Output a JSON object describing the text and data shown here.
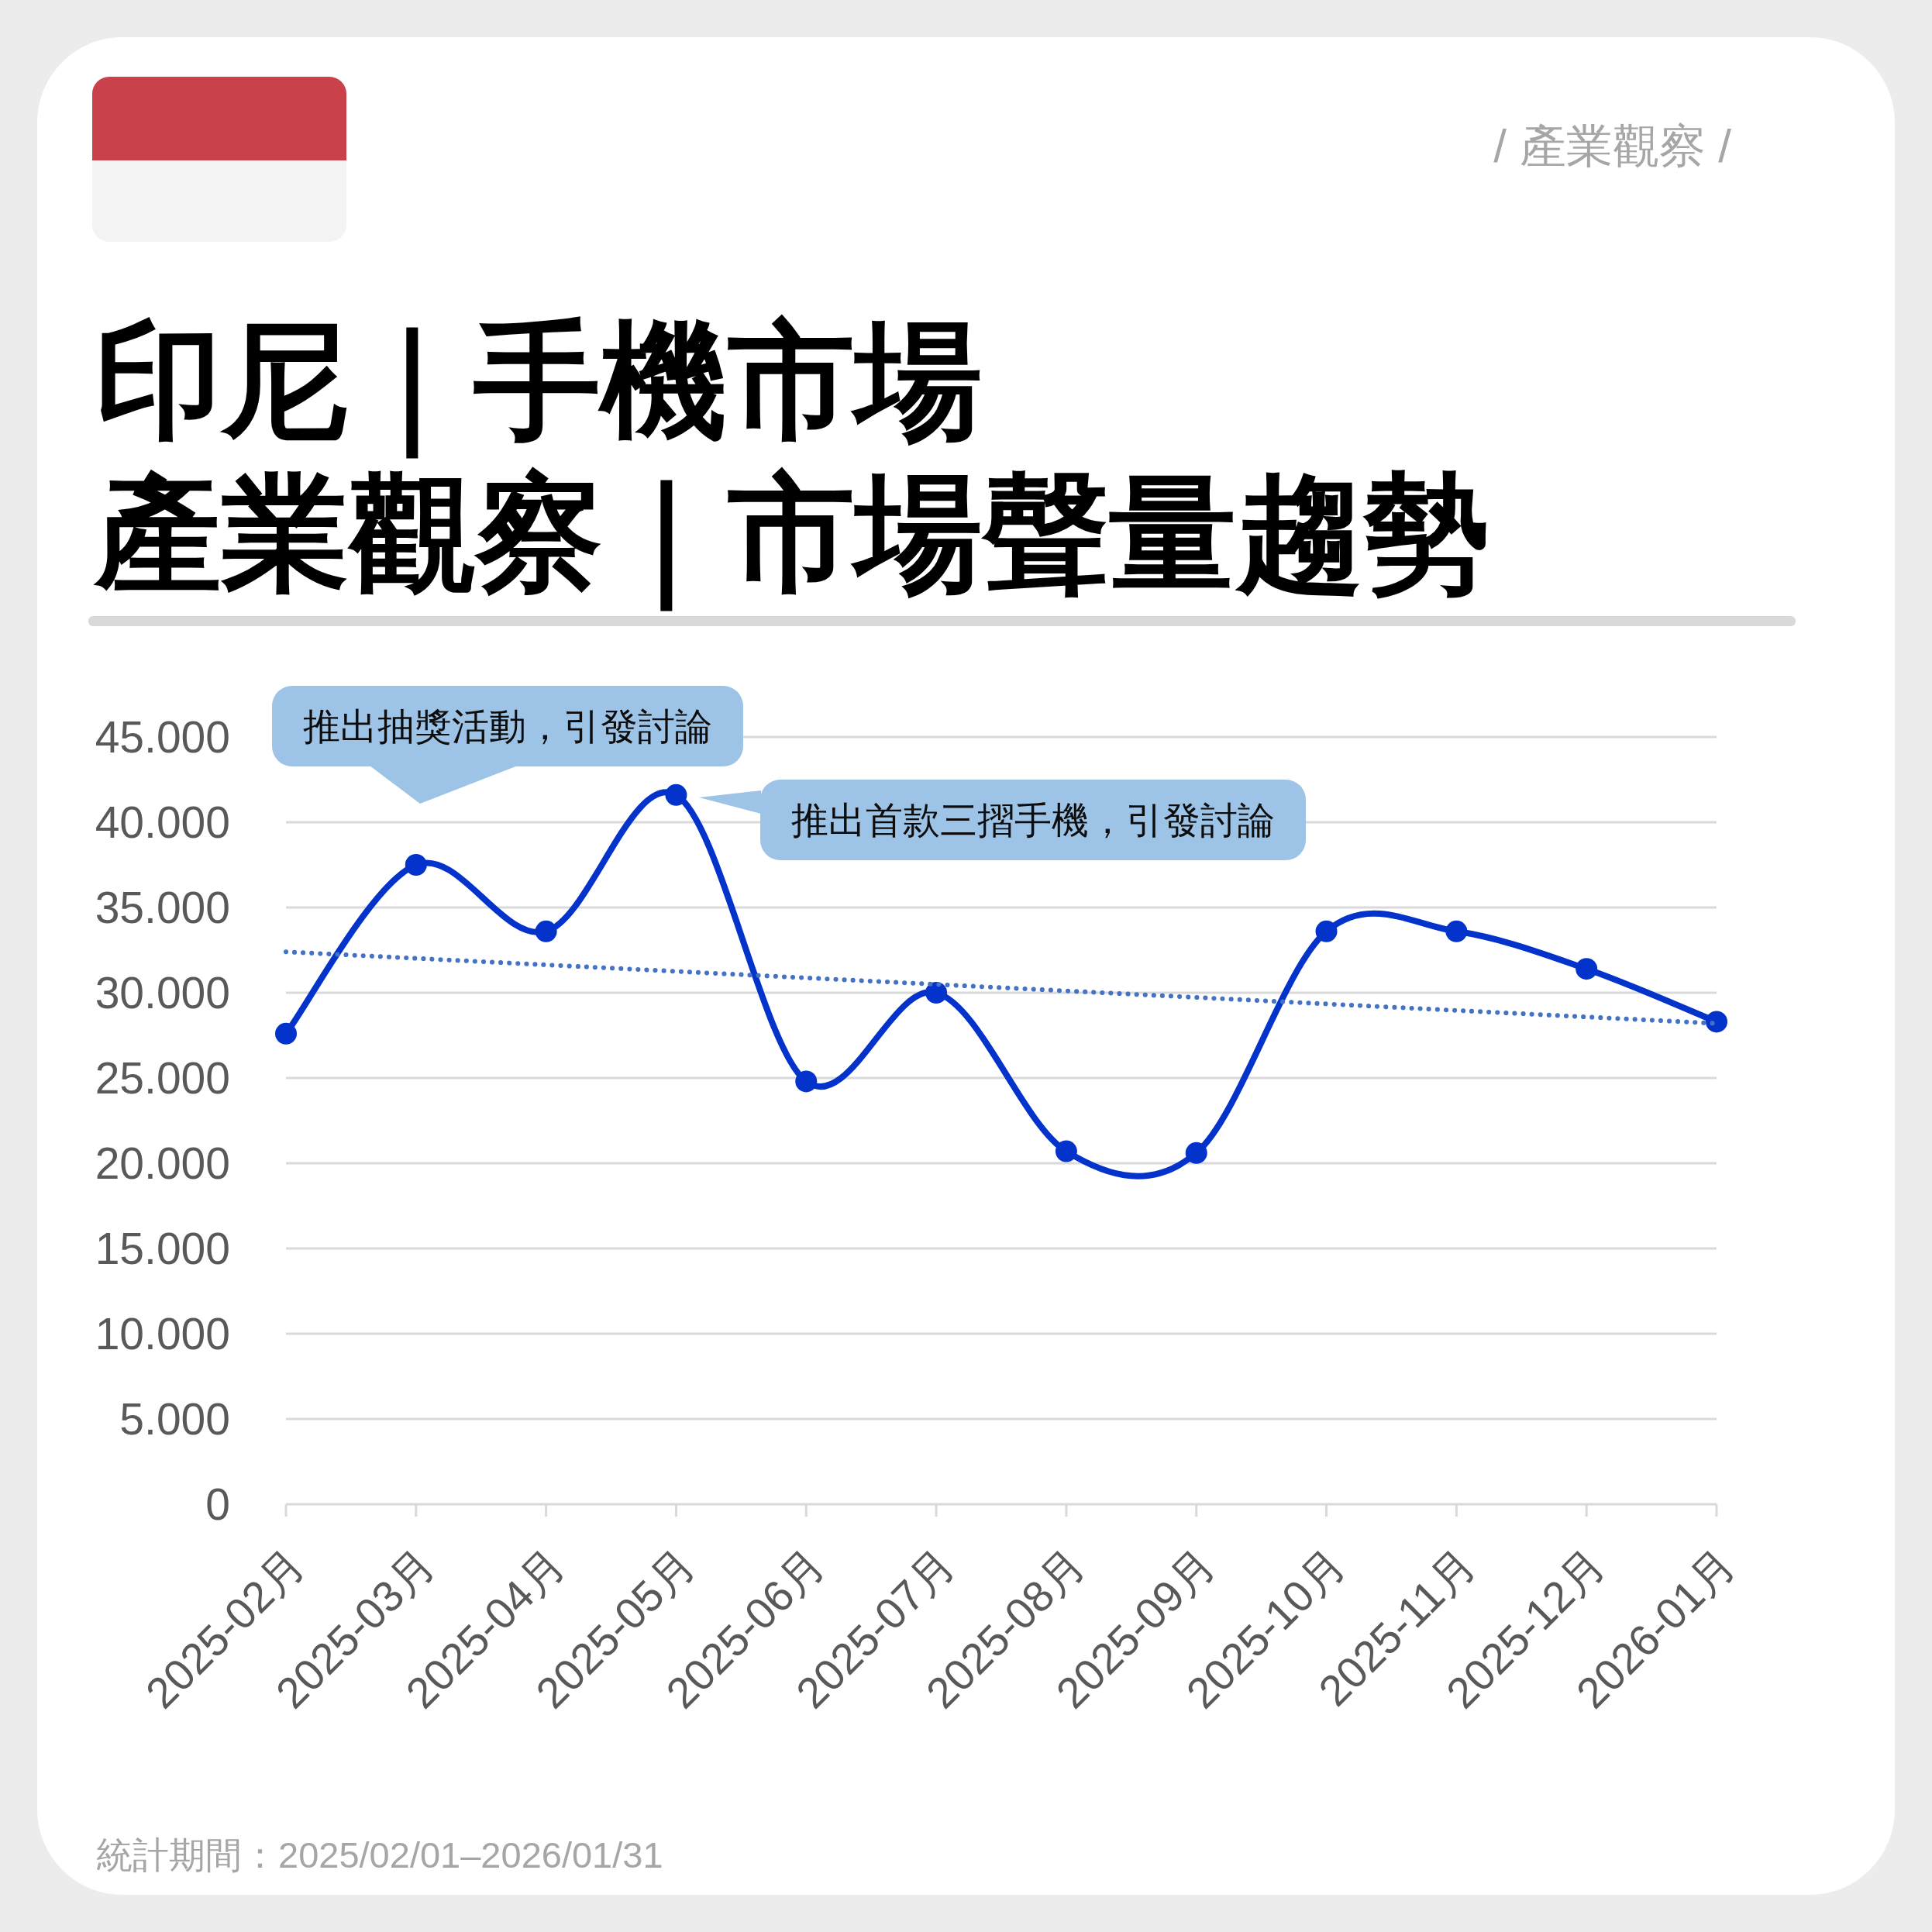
{
  "chart_data": {
    "type": "line",
    "title": "印尼｜手機市場",
    "subtitle": "產業觀察｜市場聲量趨勢",
    "categories": [
      "2025-02月",
      "2025-03月",
      "2025-04月",
      "2025-05月",
      "2025-06月",
      "2025-07月",
      "2025-08月",
      "2025-09月",
      "2025-10月",
      "2025-11月",
      "2025-12月",
      "2026-01月"
    ],
    "series": [
      {
        "color": "#0433cc",
        "values": [
          27600,
          37500,
          33600,
          41600,
          24800,
          30000,
          20700,
          20600,
          33600,
          33600,
          31400,
          28300
        ]
      },
      {
        "type": "line",
        "x": [
          "2025-02月",
          "2026-01月"
        ],
        "values": [
          32400,
          28200
        ],
        "color": "#4472c4",
        "line_style": "dotted",
        "marker": "none"
      }
    ],
    "ylim": [
      0,
      45000
    ],
    "yticks": [
      0,
      {
        "value": 5000,
        "label": "5.000"
      },
      {
        "value": 10000,
        "label": "10.000"
      },
      {
        "value": 15000,
        "label": "15.000"
      },
      {
        "value": 20000,
        "label": "20.000"
      },
      {
        "value": 25000,
        "label": "25.000"
      },
      {
        "value": 30000,
        "label": "30.000"
      },
      {
        "value": 35000,
        "label": "35.000"
      },
      {
        "value": 40000,
        "label": "40.000"
      },
      {
        "value": 45000,
        "label": "45.000"
      }
    ],
    "grid": "y",
    "marker": "circle",
    "line_style": "solid",
    "annotations": [
      "/ 產業觀察 /",
      "推出抽獎活動，引發討論",
      "推出首款三摺手機，引發討論",
      "統計期間：2025/02/01–2026/01/31"
    ]
  }
}
